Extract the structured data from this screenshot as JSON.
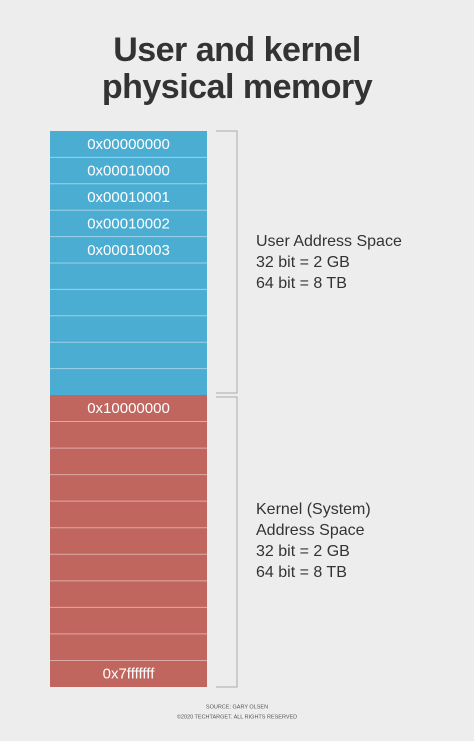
{
  "header": {
    "title": [
      "User and kernel",
      "physical memory"
    ]
  },
  "user_space": {
    "addresses": [
      "0x00000000",
      "0x00010000",
      "0x00010001",
      "0x00010002",
      "0x00010003"
    ],
    "label": [
      "User Address Space",
      "32 bit = 2 GB",
      "64 bit = 8 TB"
    ]
  },
  "kernel_space": {
    "first_address": "0x10000000",
    "last_address": "0x7fffffff",
    "label": [
      "Kernel (System)",
      "Address Space",
      "32 bit = 2 GB",
      "64 bit = 8 TB"
    ]
  },
  "footer": {
    "source": "SOURCE: GARY OLSEN",
    "copyright": "©2020 TECHTARGET. ALL RIGHTS RESERVED"
  }
}
